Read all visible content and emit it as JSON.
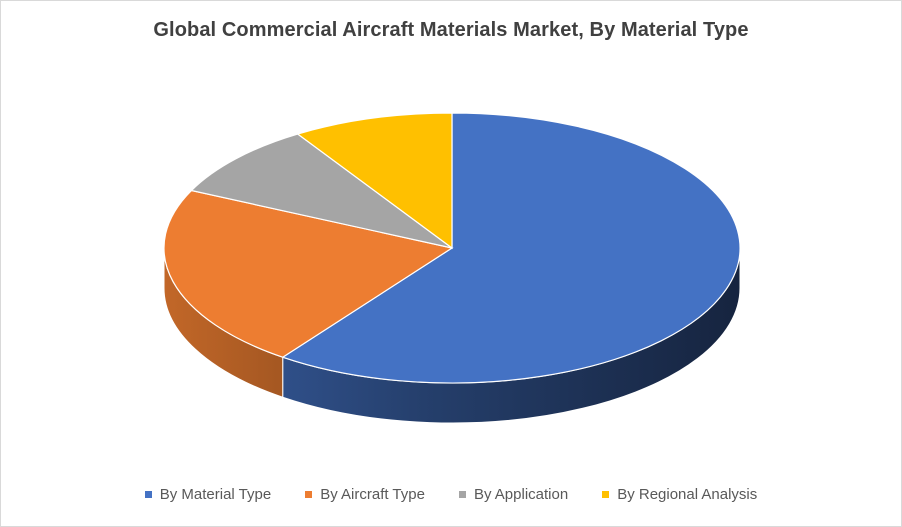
{
  "chart_data": {
    "type": "pie",
    "title": "Global Commercial Aircraft Materials Market, By Material Type",
    "style": "3d",
    "legend_position": "bottom",
    "data_labels": false,
    "series": [
      {
        "name": "By Material Type",
        "value": 60,
        "color": "#4472C4"
      },
      {
        "name": "By Aircraft Type",
        "value": 22,
        "color": "#ED7D31"
      },
      {
        "name": "By Application",
        "value": 9,
        "color": "#A5A5A5"
      },
      {
        "name": "By Regional Analysis",
        "value": 9,
        "color": "#FFC000"
      }
    ]
  }
}
